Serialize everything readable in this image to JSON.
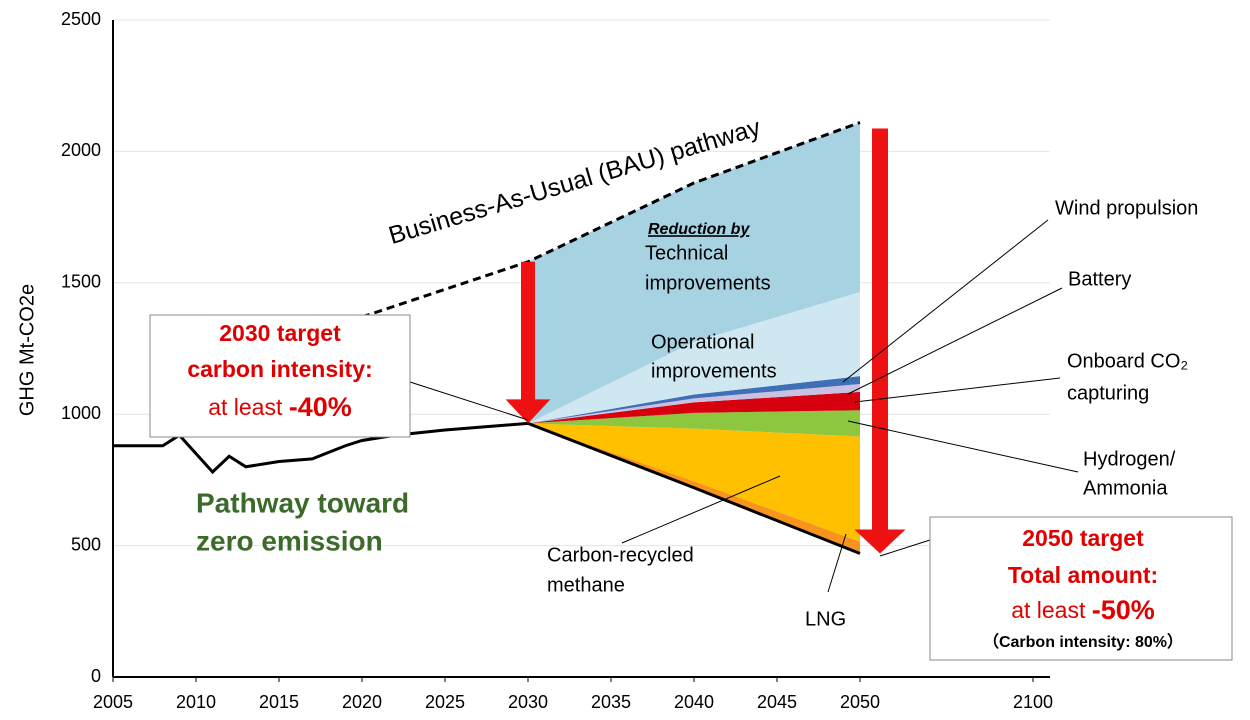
{
  "chart_data": {
    "type": "stacked_area",
    "y_label": "GHG Mt-CO2e",
    "ylim": [
      0,
      2500
    ],
    "yticks": [
      0,
      500,
      1000,
      1500,
      2000,
      2500
    ],
    "xlim": [
      2005,
      2100
    ],
    "xticks": [
      2005,
      2010,
      2015,
      2020,
      2025,
      2030,
      2035,
      2040,
      2045,
      2050,
      2100
    ],
    "grid": true,
    "historical": {
      "x": [
        2005,
        2008,
        2009,
        2010,
        2011,
        2012,
        2013,
        2015,
        2017,
        2019,
        2020,
        2022,
        2025,
        2028,
        2030
      ],
      "values": [
        880,
        880,
        920,
        850,
        780,
        840,
        800,
        820,
        830,
        880,
        900,
        920,
        940,
        955,
        965
      ],
      "color": "#000000"
    },
    "bau": {
      "label": "Business-As-Usual (BAU) pathway",
      "x": [
        2020,
        2030,
        2040,
        2050
      ],
      "values": [
        1370,
        1580,
        1880,
        2110
      ],
      "color": "#000000"
    },
    "x": [
      2030,
      2040,
      2050
    ],
    "base": [
      965,
      720,
      470
    ],
    "series": [
      {
        "label": [
          "LNG"
        ],
        "color": "#f7941d",
        "values": [
          0,
          25,
          45
        ]
      },
      {
        "label": [
          "Carbon-recycled",
          "methane"
        ],
        "color": "#ffc000",
        "values": [
          0,
          200,
          400
        ]
      },
      {
        "label": [
          "Hydrogen/",
          "Ammonia"
        ],
        "color": "#8dc63f",
        "values": [
          0,
          60,
          100
        ]
      },
      {
        "label": [
          "Onboard CO₂",
          "capturing"
        ],
        "color": "#d7000f",
        "values": [
          0,
          40,
          70
        ]
      },
      {
        "label": [
          "Battery"
        ],
        "color": "#c9c0e2",
        "values": [
          0,
          15,
          30
        ]
      },
      {
        "label": [
          "Wind propulsion"
        ],
        "color": "#3f6fb5",
        "values": [
          0,
          15,
          30
        ]
      },
      {
        "label": [
          "Operational",
          "improvements"
        ],
        "color": "#cfe7f0",
        "values": [
          0,
          200,
          320
        ]
      },
      {
        "label": [
          "Technical",
          "improvements"
        ],
        "color": "#a7d2e2",
        "values": [
          615,
          605,
          645
        ]
      }
    ],
    "reduction_by": "Reduction by",
    "pathway_label": [
      "Pathway toward",
      "zero emission"
    ],
    "target_2030": [
      "2030 target",
      "carbon intensity:",
      "at least ",
      "-40%"
    ],
    "target_2050": [
      "2050 target",
      "Total amount:",
      "at least ",
      "-50%",
      "（Carbon intensity: 80%）"
    ]
  }
}
